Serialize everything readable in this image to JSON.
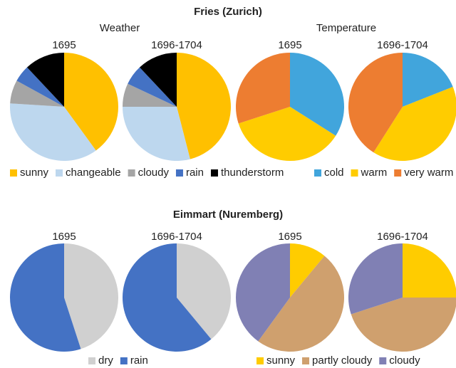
{
  "figure": {
    "sections": [
      {
        "title": "Fries (Zurich)",
        "subtitles": [
          "Weather",
          "Temperature"
        ]
      },
      {
        "title": "Eimmart (Nuremberg)"
      }
    ]
  },
  "legends": [
    {
      "labels": [
        "sunny",
        "changeable",
        "cloudy",
        "rain",
        "thunderstorm"
      ],
      "colors": [
        "#ffc000",
        "#bdd7ee",
        "#a5a5a5",
        "#4472c4",
        "#000000"
      ]
    },
    {
      "labels": [
        "cold",
        "warm",
        "very warm"
      ],
      "colors": [
        "#41a5dc",
        "#ffcc00",
        "#ed7d31"
      ]
    },
    {
      "labels": [
        "dry",
        "rain"
      ],
      "colors": [
        "#d0d0d0",
        "#4472c4"
      ]
    },
    {
      "labels": [
        "sunny",
        "partly cloudy",
        "cloudy"
      ],
      "colors": [
        "#ffcc00",
        "#cfa06e",
        "#8080b4"
      ]
    }
  ],
  "chart_data": [
    {
      "type": "pie",
      "title": "1695",
      "values": [
        40,
        36,
        7,
        5,
        12
      ]
    },
    {
      "type": "pie",
      "title": "1696-1704",
      "values": [
        46,
        29,
        7,
        6,
        12
      ]
    },
    {
      "type": "pie",
      "title": "1695",
      "values": [
        34,
        36,
        30
      ]
    },
    {
      "type": "pie",
      "title": "1696-1704",
      "values": [
        19,
        40,
        41
      ]
    },
    {
      "type": "pie",
      "title": "1695",
      "values": [
        45,
        55
      ]
    },
    {
      "type": "pie",
      "title": "1696-1704",
      "values": [
        39,
        61
      ]
    },
    {
      "type": "pie",
      "title": "1695",
      "values": [
        11,
        49,
        40
      ]
    },
    {
      "type": "pie",
      "title": "1696-1704",
      "values": [
        25,
        45,
        30
      ]
    }
  ]
}
